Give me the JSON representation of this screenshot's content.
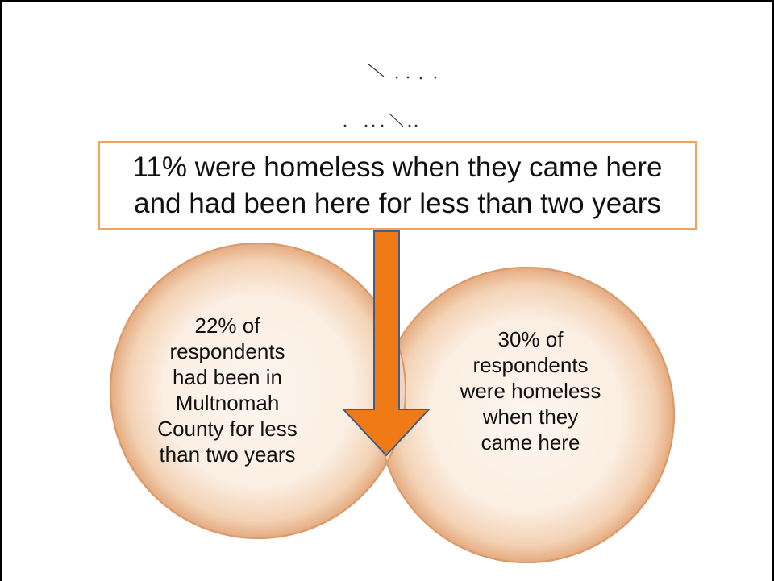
{
  "callout": {
    "text_line1": "11% were homeless when they came here",
    "text_line2": "and had been here for less than two years"
  },
  "left_circle": {
    "lines": [
      "22% of",
      "respondents",
      "had been in",
      "Multnomah",
      "County for less",
      "than two years"
    ]
  },
  "right_circle": {
    "lines": [
      "30% of",
      "respondents",
      "were homeless",
      "when they",
      "came here"
    ]
  },
  "colors": {
    "callout_border": "#f2a35e",
    "arrow_fill": "#f07a16",
    "arrow_stroke": "#3f5d86",
    "circle_fill": "#fbeee2",
    "circle_edge": "#e9b78f",
    "overlap_fill": "#f2dcc8"
  }
}
